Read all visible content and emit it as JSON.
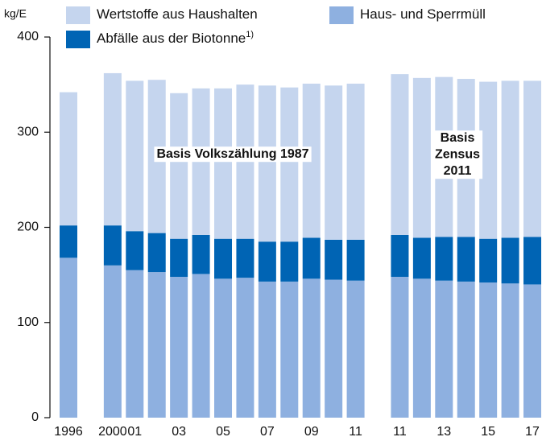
{
  "chart_data": {
    "type": "stacked_bar",
    "y_label": "kg/E",
    "categories": [
      "1996",
      null,
      "2000",
      "01",
      null,
      "03",
      null,
      "05",
      null,
      "07",
      null,
      "09",
      null,
      "11",
      null,
      "11",
      null,
      "13",
      null,
      "15",
      null,
      "17"
    ],
    "series": [
      {
        "name": "Haus- und Sperrmüll",
        "color": "#8eb0e0",
        "values": [
          168,
          null,
          160,
          155,
          153,
          148,
          151,
          146,
          147,
          143,
          143,
          146,
          145,
          144,
          null,
          148,
          146,
          144,
          143,
          142,
          141,
          140
        ]
      },
      {
        "name": "Abfälle aus der Biotonne",
        "note_marker": "1)",
        "color": "#0064b4",
        "values": [
          34,
          null,
          42,
          41,
          41,
          40,
          41,
          42,
          41,
          42,
          42,
          43,
          42,
          43,
          null,
          44,
          43,
          46,
          47,
          46,
          48,
          50
        ]
      },
      {
        "name": "Wertstoffe aus Haushalten",
        "color": "#c5d5ee",
        "values": [
          140,
          null,
          160,
          158,
          161,
          153,
          154,
          158,
          162,
          164,
          162,
          162,
          162,
          164,
          null,
          169,
          168,
          168,
          166,
          165,
          165,
          164
        ]
      }
    ],
    "legend_order": [
      2,
      0,
      1
    ],
    "annotations": [
      [
        "Basis Volkszählung 1987"
      ],
      [
        "Basis",
        "Zensus",
        "2011"
      ]
    ],
    "ylim": [
      0,
      400
    ],
    "yticks": [
      0,
      100,
      200,
      300,
      400
    ],
    "grid": false
  }
}
